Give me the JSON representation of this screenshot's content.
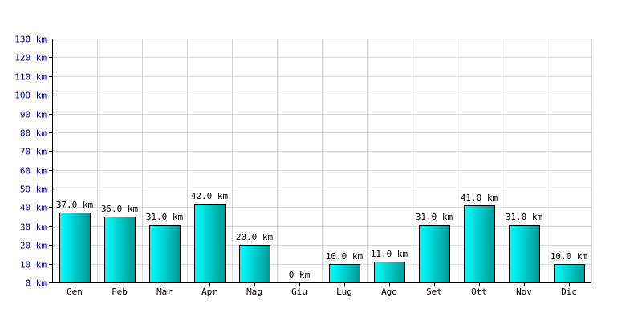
{
  "chart_data": {
    "type": "bar",
    "title": "",
    "xlabel": "",
    "ylabel": "",
    "unit": "km",
    "categories": [
      "Gen",
      "Feb",
      "Mar",
      "Apr",
      "Mag",
      "Giu",
      "Lug",
      "Ago",
      "Set",
      "Ott",
      "Nov",
      "Dic"
    ],
    "values": [
      37.0,
      35.0,
      31.0,
      42.0,
      20.0,
      0,
      10.0,
      11.0,
      31.0,
      41.0,
      31.0,
      10.0
    ],
    "data_labels": [
      "37.0 km",
      "35.0 km",
      "31.0 km",
      "42.0 km",
      "20.0 km",
      "0 km",
      "10.0 km",
      "11.0 km",
      "31.0 km",
      "41.0 km",
      "31.0 km",
      "10.0 km"
    ],
    "y_ticks": [
      0,
      10,
      20,
      30,
      40,
      50,
      60,
      70,
      80,
      90,
      100,
      110,
      120,
      130
    ],
    "y_tick_labels": [
      "0 km",
      "10 km",
      "20 km",
      "30 km",
      "40 km",
      "50 km",
      "60 km",
      "70 km",
      "80 km",
      "90 km",
      "100 km",
      "110 km",
      "120 km",
      "130 km"
    ],
    "ylim": [
      0,
      130
    ],
    "grid": true,
    "legend": "none",
    "colors": {
      "bar_light": "#00ffff",
      "bar_dark": "#009999",
      "grid": "#dcdcdc",
      "tick_text": "#000080"
    }
  }
}
